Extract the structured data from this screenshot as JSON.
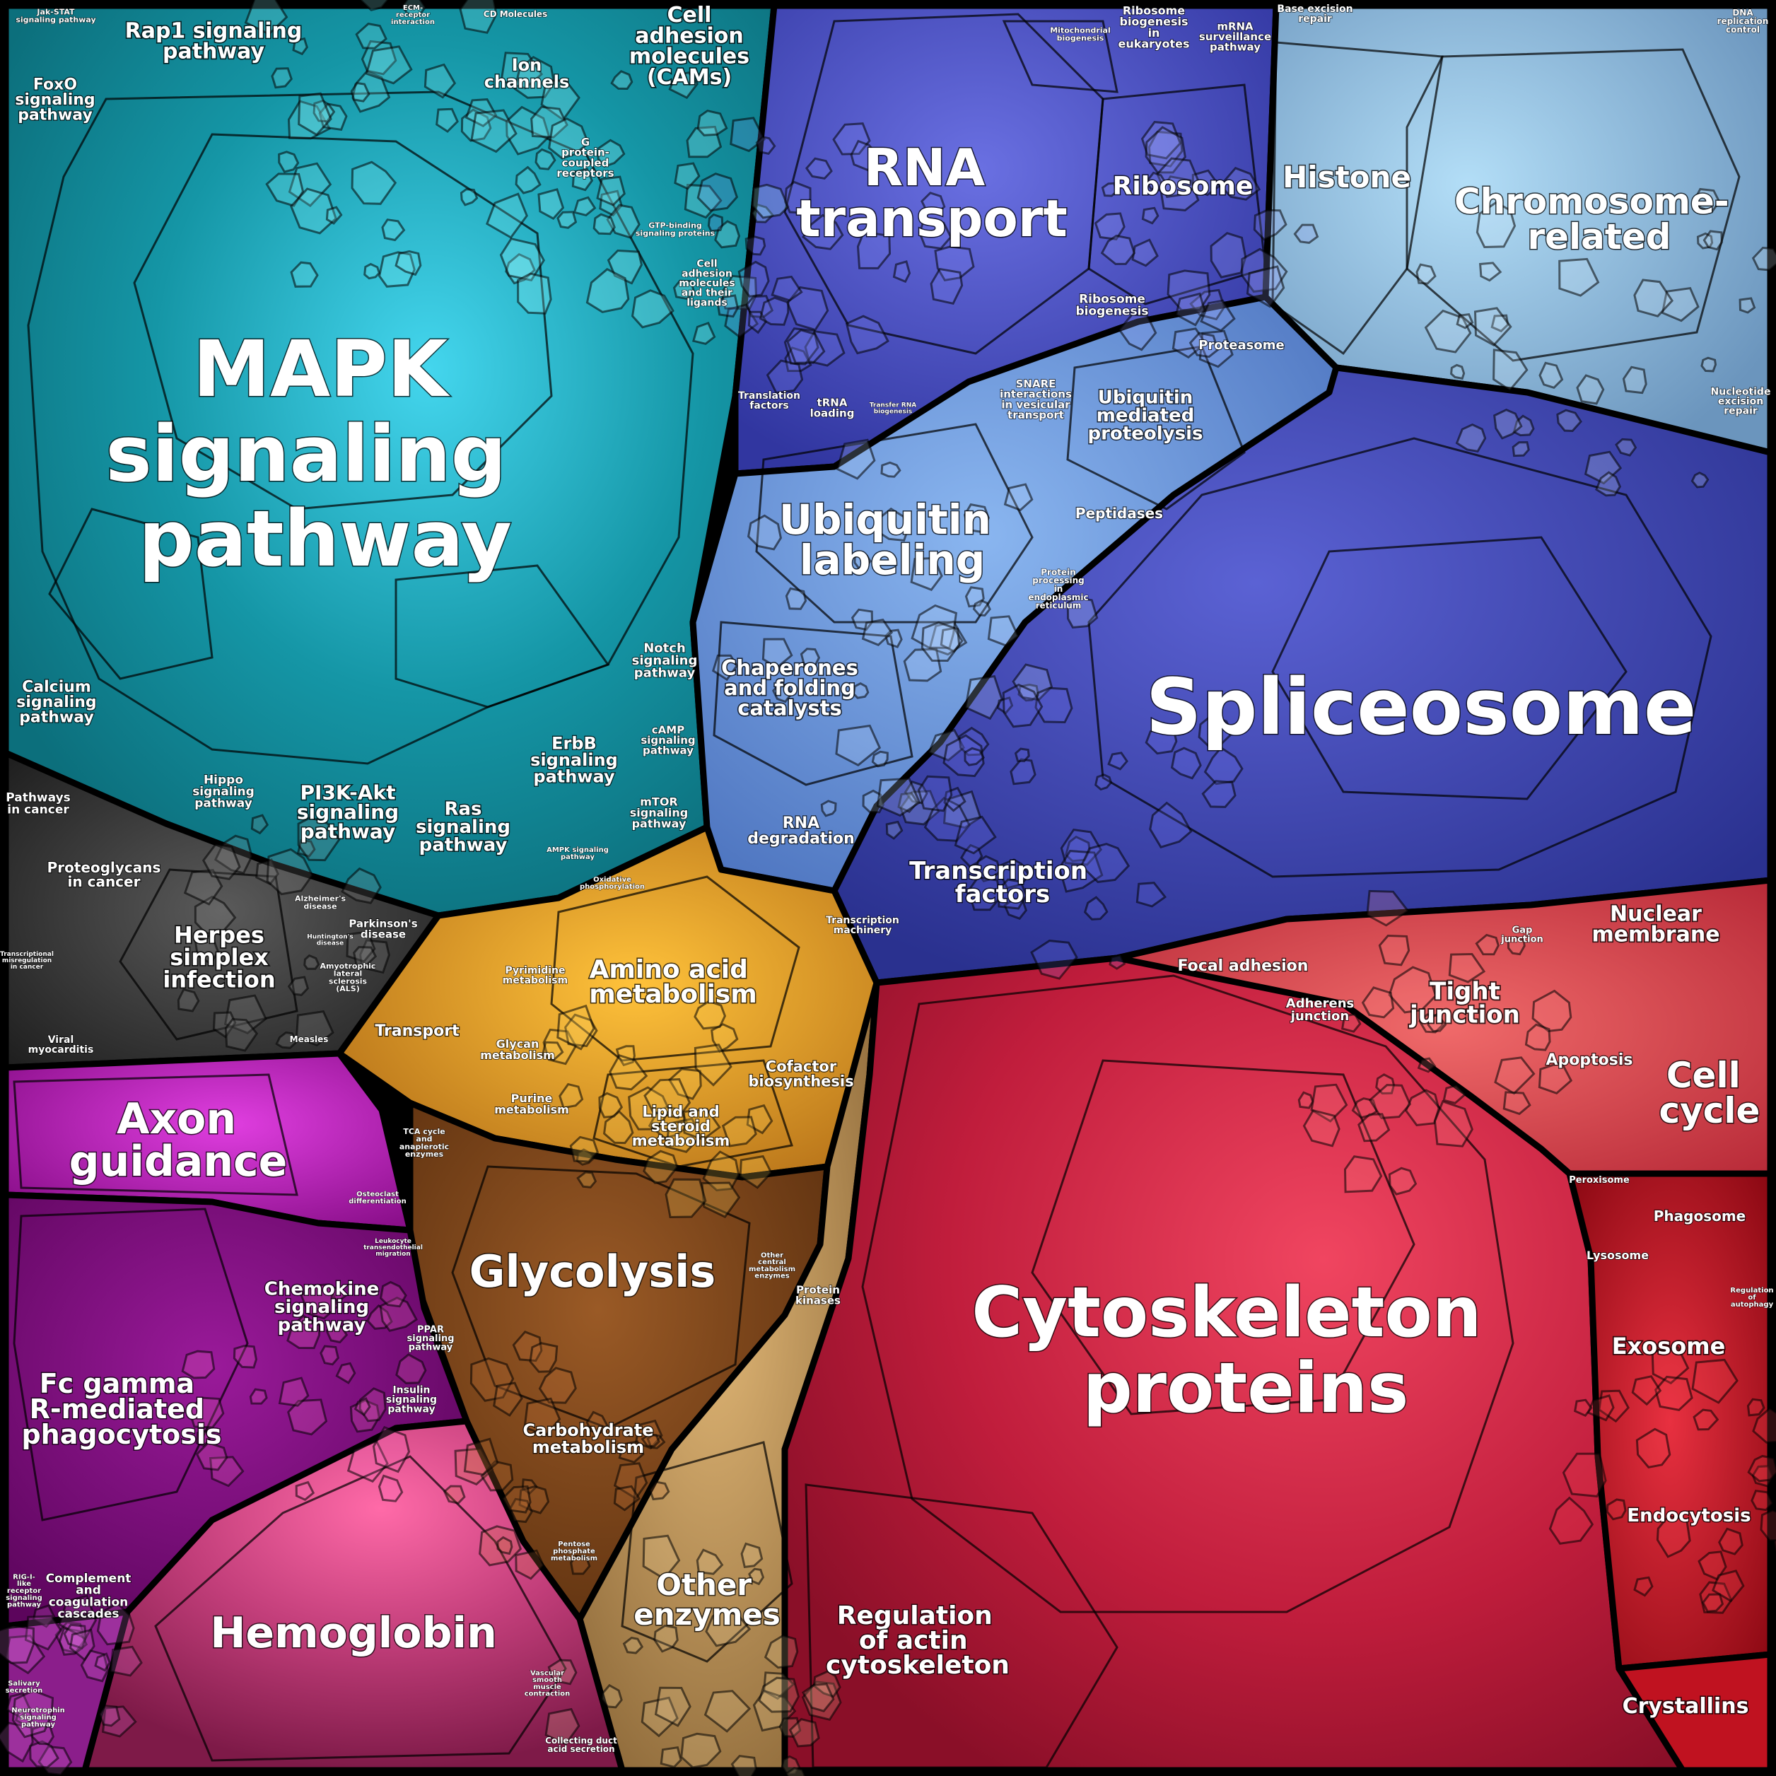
{
  "title": "",
  "palette": {
    "signaling": "#1aa3b4",
    "rna": "#4a4fc4",
    "chromatin": "#8bb9dc",
    "ubiquitin": "#6d97d6",
    "spliceosome": "#3b43b0",
    "metabolism": "#d9961e",
    "glycolysis": "#7a4418",
    "other_enzymes": "#c79a5a",
    "cytoskeleton": "#c21f3e",
    "red_small": "#b4101f",
    "disease": "#3a3a3a",
    "axon": "#b01ab0",
    "hemoglobin": "#c23e7a",
    "fc": "#7e0c7e"
  },
  "labels": {
    "mapk": [
      "MAPK",
      "signaling",
      "pathway"
    ],
    "rna_transport": [
      "RNA",
      "transport"
    ],
    "spliceosome": "Spliceosome",
    "cytoskeleton": [
      "Cytoskeleton",
      "proteins"
    ],
    "glycolysis": "Glycolysis",
    "hemoglobin": "Hemoglobin",
    "axon": [
      "Axon",
      "guidance"
    ],
    "chromosome": [
      "Chromosome-",
      "related"
    ],
    "histone": "Histone",
    "ribosome": "Ribosome",
    "ubiquitin_labeling": [
      "Ubiquitin",
      "labeling"
    ],
    "fc_gamma": [
      "Fc gamma",
      "R-mediated",
      "phagocytosis"
    ],
    "amino_acid": [
      "Amino acid",
      "metabolism"
    ],
    "other_enzymes": [
      "Other",
      "enzymes"
    ],
    "transcription_factors": [
      "Transcription",
      "factors"
    ],
    "regulation_actin": [
      "Regulation",
      "of actin",
      "cytoskeleton"
    ],
    "cell_cycle": [
      "Cell",
      "cycle"
    ],
    "rap1": [
      "Rap1 signaling",
      "pathway"
    ],
    "foxo": [
      "FoxO",
      "signaling",
      "pathway"
    ],
    "ion_channels": [
      "Ion",
      "channels"
    ],
    "cams": [
      "Cell",
      "adhesion",
      "molecules",
      "(CAMs)"
    ],
    "calcium": [
      "Calcium",
      "signaling",
      "pathway"
    ],
    "pi3k": [
      "PI3K-Akt",
      "signaling",
      "pathway"
    ],
    "ras": [
      "Ras",
      "signaling",
      "pathway"
    ],
    "erbb": [
      "ErbB",
      "signaling",
      "pathway"
    ],
    "hippo": [
      "Hippo",
      "signaling",
      "pathway"
    ],
    "notch": [
      "Notch",
      "signaling",
      "pathway"
    ],
    "camp": [
      "cAMP",
      "signaling",
      "pathway"
    ],
    "mtor": [
      "mTOR",
      "signaling",
      "pathway"
    ],
    "gpcr": [
      "G",
      "protein-",
      "coupled",
      "receptors"
    ],
    "gtp_binding": [
      "GTP-binding",
      "signaling proteins"
    ],
    "cell_adhesion_ligands": [
      "Cell",
      "adhesion",
      "molecules",
      "and their",
      "ligands"
    ],
    "chaperones": [
      "Chaperones",
      "and folding",
      "catalysts"
    ],
    "rna_degradation": [
      "RNA",
      "degradation"
    ],
    "proteasome": "Proteasome",
    "ubiquitin_mediated": [
      "Ubiquitin",
      "mediated",
      "proteolysis"
    ],
    "peptidases": "Peptidases",
    "snare": [
      "SNARE",
      "interactions",
      "in vesicular",
      "transport"
    ],
    "protein_processing_er": [
      "Protein",
      "processing",
      "in",
      "endoplasmic",
      "reticulum"
    ],
    "ribosome_biogenesis": [
      "Ribosome",
      "biogenesis"
    ],
    "ribosome_biogenesis_euk": [
      "Ribosome",
      "biogenesis",
      "in",
      "eukaryotes"
    ],
    "mrna_surveillance": [
      "mRNA",
      "surveillance",
      "pathway"
    ],
    "mitochondrial_biogenesis": [
      "Mitochondrial",
      "biogenesis"
    ],
    "translation_factors": [
      "Translation",
      "factors"
    ],
    "trna_loading": [
      "tRNA",
      "loading"
    ],
    "transfer_rna": [
      "Transfer RNA",
      "biogenesis"
    ],
    "base_excision": [
      "Base excision",
      "repair"
    ],
    "dna_replication_control": [
      "DNA",
      "replication",
      "control"
    ],
    "nucleotide_excision": [
      "Nucleotide",
      "excision",
      "repair"
    ],
    "transcription_machinery": [
      "Transcription",
      "machinery"
    ],
    "focal_adhesion": "Focal adhesion",
    "adherens": [
      "Adherens",
      "junction"
    ],
    "tight_junction": [
      "Tight",
      "junction"
    ],
    "gap_junction": [
      "Gap",
      "junction"
    ],
    "nuclear_membrane": [
      "Nuclear",
      "membrane"
    ],
    "apoptosis": "Apoptosis",
    "peroxisome": "Peroxisome",
    "phagosome": "Phagosome",
    "lysosome": "Lysosome",
    "exosome": "Exosome",
    "endocytosis": "Endocytosis",
    "crystallins": "Crystallins",
    "regulation_autophagy": [
      "Regulation",
      "of",
      "autophagy"
    ],
    "transport": "Transport",
    "pyrimidine": [
      "Pyrimidine",
      "metabolism"
    ],
    "glycan": [
      "Glycan",
      "metabolism"
    ],
    "purine": [
      "Purine",
      "metabolism"
    ],
    "lipid_steroid": [
      "Lipid and",
      "steroid",
      "metabolism"
    ],
    "cofactor": [
      "Cofactor",
      "biosynthesis"
    ],
    "tca": [
      "TCA cycle",
      "and",
      "anaplerotic",
      "enzymes"
    ],
    "carbohydrate": [
      "Carbohydrate",
      "metabolism"
    ],
    "oxidative": [
      "Oxidative",
      "phosphorylation"
    ],
    "other_central": [
      "Other",
      "central",
      "metabolism",
      "enzymes"
    ],
    "protein_kinases": [
      "Protein",
      "kinases"
    ],
    "pentose": [
      "Pentose",
      "phosphate",
      "metabolism"
    ],
    "pathways_cancer": [
      "Pathways",
      "in cancer"
    ],
    "proteoglycans": [
      "Proteoglycans",
      "in cancer"
    ],
    "herpes": [
      "Herpes",
      "simplex",
      "infection"
    ],
    "alzheimers": [
      "Alzheimer's",
      "disease"
    ],
    "parkinsons": [
      "Parkinson's",
      "disease"
    ],
    "huntingtons": [
      "Huntington's",
      "disease"
    ],
    "als": [
      "Amyotrophic",
      "lateral",
      "sclerosis",
      "(ALS)"
    ],
    "measles": "Measles",
    "viral_myocarditis": [
      "Viral",
      "myocarditis"
    ],
    "transcriptional_misreg": [
      "Transcriptional",
      "misregulation",
      "in cancer"
    ],
    "chemokine": [
      "Chemokine",
      "signaling",
      "pathway"
    ],
    "osteoclast": [
      "Osteoclast",
      "differentiation"
    ],
    "leukocyte": [
      "Leukocyte",
      "transendothelial",
      "migration"
    ],
    "ppar": [
      "PPAR",
      "signaling",
      "pathway"
    ],
    "insulin": [
      "Insulin",
      "signaling",
      "pathway"
    ],
    "complement": [
      "Complement",
      "and",
      "coagulation",
      "cascades"
    ],
    "rig1": [
      "RIG-I-",
      "like",
      "receptor",
      "signaling",
      "pathway"
    ],
    "salivary": [
      "Salivary",
      "secretion"
    ],
    "neurotrophin": [
      "Neurotrophin",
      "signaling",
      "pathway"
    ],
    "vascular_smooth": [
      "Vascular",
      "smooth",
      "muscle",
      "contraction"
    ],
    "collecting_duct": [
      "Collecting duct",
      "acid secretion"
    ],
    "jak_stat": [
      "Jak-STAT",
      "signaling pathway"
    ],
    "ecm_receptor": [
      "ECM-",
      "receptor",
      "interaction"
    ],
    "cd_molecules": "CD Molecules",
    "ampk": [
      "AMPK signaling",
      "pathway"
    ]
  }
}
